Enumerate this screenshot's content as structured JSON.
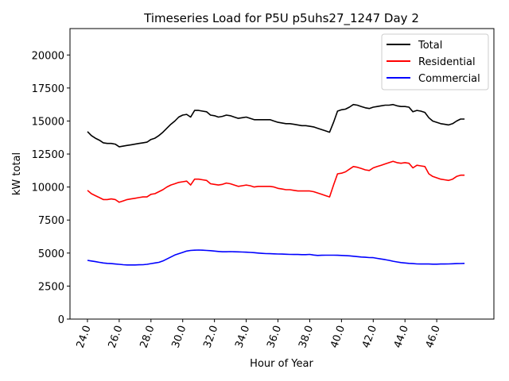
{
  "chart_data": {
    "type": "line",
    "title": "Timeseries Load for P5U p5uhs27_1247  Day 2",
    "xlabel": "Hour of Year",
    "ylabel": "kW total",
    "xlim": [
      22.9,
      49.6
    ],
    "ylim": [
      0,
      22000
    ],
    "xticks": [
      24,
      26,
      28,
      30,
      32,
      34,
      36,
      38,
      40,
      42,
      44,
      46
    ],
    "xtick_labels": [
      "24.0",
      "26.0",
      "28.0",
      "30.0",
      "32.0",
      "34.0",
      "36.0",
      "38.0",
      "40.0",
      "42.0",
      "44.0",
      "46.0"
    ],
    "yticks": [
      0,
      2500,
      5000,
      7500,
      10000,
      12500,
      15000,
      17500,
      20000
    ],
    "ytick_labels": [
      "0",
      "2500",
      "5000",
      "7500",
      "10000",
      "12500",
      "15000",
      "17500",
      "20000"
    ],
    "legend_position": "upper right",
    "x": [
      24.0,
      24.25,
      24.5,
      24.75,
      25.0,
      25.25,
      25.5,
      25.75,
      26.0,
      26.25,
      26.5,
      26.75,
      27.0,
      27.25,
      27.5,
      27.75,
      28.0,
      28.25,
      28.5,
      28.75,
      29.0,
      29.25,
      29.5,
      29.75,
      30.0,
      30.25,
      30.5,
      30.75,
      31.0,
      31.25,
      31.5,
      31.75,
      32.0,
      32.25,
      32.5,
      32.75,
      33.0,
      33.25,
      33.5,
      33.75,
      34.0,
      34.25,
      34.5,
      34.75,
      35.0,
      35.25,
      35.5,
      35.75,
      36.0,
      36.25,
      36.5,
      36.75,
      37.0,
      37.25,
      37.5,
      37.75,
      38.0,
      38.25,
      38.5,
      38.75,
      39.0,
      39.25,
      39.5,
      39.75,
      40.0,
      40.25,
      40.5,
      40.75,
      41.0,
      41.25,
      41.5,
      41.75,
      42.0,
      42.25,
      42.5,
      42.75,
      43.0,
      43.25,
      43.5,
      43.75,
      44.0,
      44.25,
      44.5,
      44.75,
      45.0,
      45.25,
      45.5,
      45.75,
      46.0,
      46.25,
      46.5,
      46.75,
      47.0,
      47.25,
      47.5,
      47.75
    ],
    "series": [
      {
        "name": "Total",
        "color": "#000000",
        "values": [
          14200,
          13900,
          13700,
          13550,
          13350,
          13300,
          13300,
          13250,
          13050,
          13100,
          13150,
          13200,
          13250,
          13300,
          13350,
          13400,
          13600,
          13700,
          13900,
          14150,
          14450,
          14750,
          15000,
          15300,
          15450,
          15500,
          15300,
          15800,
          15800,
          15750,
          15700,
          15450,
          15400,
          15300,
          15350,
          15450,
          15400,
          15300,
          15200,
          15250,
          15300,
          15200,
          15100,
          15100,
          15100,
          15100,
          15100,
          15000,
          14900,
          14850,
          14800,
          14800,
          14750,
          14700,
          14650,
          14650,
          14600,
          14550,
          14450,
          14350,
          14250,
          14150,
          14900,
          15750,
          15850,
          15900,
          16050,
          16250,
          16200,
          16100,
          16000,
          15950,
          16050,
          16100,
          16150,
          16200,
          16200,
          16250,
          16150,
          16100,
          16100,
          16050,
          15700,
          15800,
          15750,
          15650,
          15250,
          15000,
          14900,
          14800,
          14750,
          14700,
          14800,
          15000,
          15150,
          15150
        ]
      },
      {
        "name": "Residential",
        "color": "#ff0000",
        "values": [
          9750,
          9500,
          9350,
          9200,
          9050,
          9050,
          9100,
          9050,
          8850,
          8950,
          9050,
          9100,
          9150,
          9200,
          9250,
          9250,
          9450,
          9500,
          9650,
          9800,
          10000,
          10150,
          10250,
          10350,
          10400,
          10450,
          10150,
          10600,
          10600,
          10550,
          10500,
          10250,
          10200,
          10150,
          10200,
          10300,
          10250,
          10150,
          10050,
          10100,
          10150,
          10100,
          10000,
          10050,
          10050,
          10050,
          10050,
          10000,
          9900,
          9850,
          9800,
          9800,
          9750,
          9700,
          9700,
          9700,
          9700,
          9650,
          9550,
          9450,
          9350,
          9250,
          10150,
          11000,
          11050,
          11150,
          11350,
          11550,
          11500,
          11400,
          11300,
          11250,
          11450,
          11550,
          11650,
          11750,
          11850,
          11950,
          11850,
          11800,
          11850,
          11800,
          11450,
          11650,
          11600,
          11550,
          11000,
          10800,
          10700,
          10600,
          10550,
          10500,
          10600,
          10800,
          10900,
          10900
        ]
      },
      {
        "name": "Commercial",
        "color": "#0000ff",
        "values": [
          4450,
          4400,
          4350,
          4300,
          4250,
          4220,
          4200,
          4170,
          4150,
          4120,
          4100,
          4100,
          4100,
          4110,
          4120,
          4150,
          4200,
          4250,
          4300,
          4400,
          4550,
          4700,
          4850,
          4950,
          5050,
          5150,
          5200,
          5220,
          5230,
          5220,
          5200,
          5180,
          5150,
          5120,
          5100,
          5100,
          5110,
          5100,
          5090,
          5080,
          5070,
          5050,
          5030,
          5000,
          4980,
          4960,
          4950,
          4940,
          4930,
          4920,
          4910,
          4900,
          4890,
          4890,
          4880,
          4880,
          4900,
          4850,
          4820,
          4830,
          4840,
          4840,
          4840,
          4830,
          4820,
          4800,
          4790,
          4760,
          4730,
          4700,
          4680,
          4660,
          4650,
          4600,
          4550,
          4500,
          4450,
          4380,
          4330,
          4280,
          4250,
          4220,
          4200,
          4180,
          4170,
          4170,
          4170,
          4160,
          4160,
          4170,
          4170,
          4180,
          4190,
          4200,
          4210,
          4220
        ]
      }
    ]
  }
}
